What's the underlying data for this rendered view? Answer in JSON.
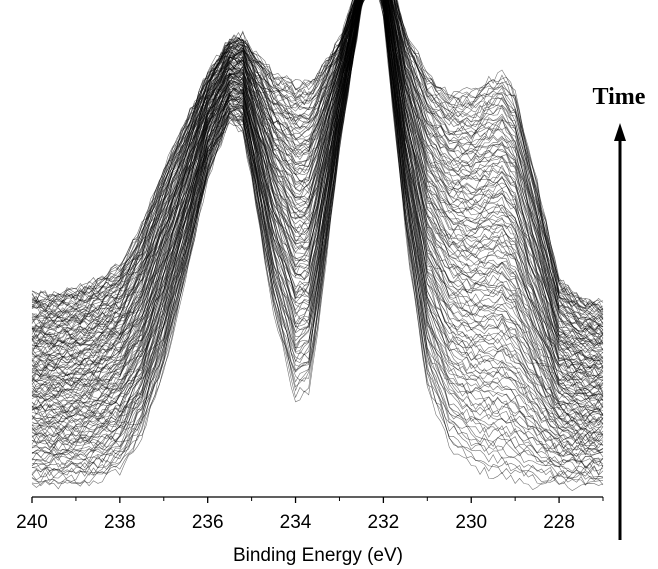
{
  "chart_data": {
    "type": "line",
    "title": "",
    "xlabel": "Binding Energy (eV)",
    "ylabel": "",
    "xlim": [
      240,
      227
    ],
    "x_reversed": true,
    "x_ticks": [
      "240",
      "238",
      "236",
      "234",
      "232",
      "230",
      "228"
    ],
    "y_axis_visible": false,
    "grid": false,
    "legend": "none",
    "annotation": {
      "text": "Time",
      "arrow_direction": "up"
    },
    "line_color": "#000000",
    "series_count": 150,
    "noise_amplitude": 0.011,
    "x": [
      240,
      239.5,
      239,
      238.5,
      238,
      237.5,
      237,
      236.5,
      236,
      235.5,
      235.2,
      235,
      234.5,
      234,
      233.7,
      233.5,
      233,
      232.5,
      232.2,
      232,
      231.5,
      231,
      230.5,
      230,
      229.5,
      229.3,
      229,
      228.5,
      228,
      227.5,
      227
    ],
    "first_spectrum": [
      0.42,
      0.42,
      0.43,
      0.45,
      0.48,
      0.56,
      0.68,
      0.78,
      0.88,
      0.95,
      0.96,
      0.93,
      0.88,
      0.86,
      0.86,
      0.88,
      0.95,
      1.08,
      1.18,
      1.14,
      0.97,
      0.88,
      0.84,
      0.84,
      0.87,
      0.88,
      0.84,
      0.65,
      0.45,
      0.41,
      0.4
    ],
    "last_spectrum": [
      0.02,
      0.02,
      0.02,
      0.03,
      0.05,
      0.12,
      0.26,
      0.45,
      0.66,
      0.78,
      0.76,
      0.66,
      0.38,
      0.2,
      0.22,
      0.34,
      0.72,
      1.02,
      1.08,
      1.0,
      0.55,
      0.22,
      0.1,
      0.06,
      0.04,
      0.04,
      0.03,
      0.02,
      0.02,
      0.02,
      0.02
    ]
  }
}
